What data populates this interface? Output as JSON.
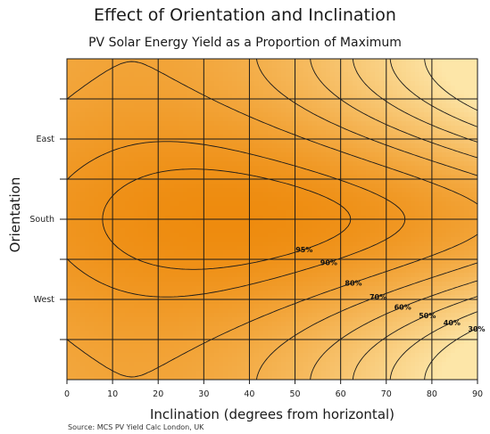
{
  "title": "Effect of Orientation and Inclination",
  "subtitle": "PV Solar Energy Yield as a Proportion of Maximum",
  "source": "Source: MCS PV Yield Calc London, UK",
  "chart_data": {
    "type": "heatmap",
    "title": "Effect of Orientation and Inclination",
    "subtitle": "PV Solar Energy Yield as a Proportion of Maximum",
    "xlabel": "Inclination (degrees from horizontal)",
    "ylabel": "Orientation",
    "x_ticks": [
      0,
      10,
      20,
      30,
      40,
      50,
      60,
      70,
      80,
      90
    ],
    "xlim": [
      0,
      90
    ],
    "y_ticks": [
      "East",
      "South",
      "West"
    ],
    "y_tick_degrees": [
      90,
      180,
      270
    ],
    "ylim_degrees": [
      0,
      360
    ],
    "grid": true,
    "peak": {
      "inclination": 35,
      "orientation": "South",
      "value": 100
    },
    "contour_levels": [
      95,
      90,
      80,
      70,
      60,
      50,
      40,
      30
    ],
    "contour_labels": [
      "95%",
      "90%",
      "80%",
      "70%",
      "60%",
      "50%",
      "40%",
      "30%"
    ],
    "colors": {
      "high": "#ee8b0e",
      "low": "#fde6a8",
      "line": "#1a1a1a"
    }
  }
}
